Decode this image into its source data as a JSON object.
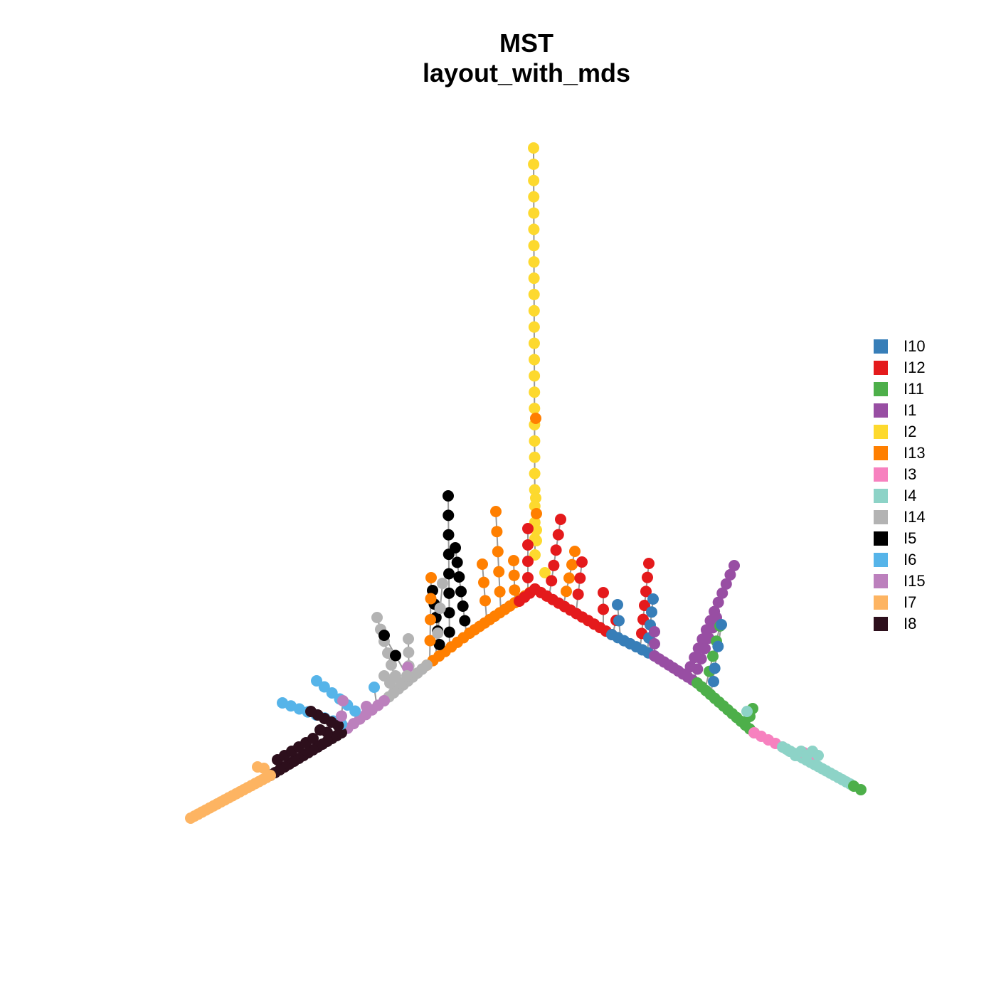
{
  "title": {
    "line1": "MST",
    "line2": "layout_with_mds"
  },
  "legend": {
    "items": [
      {
        "label": "I10",
        "color": "#377EB8"
      },
      {
        "label": "I12",
        "color": "#E41A1C"
      },
      {
        "label": "I11",
        "color": "#4DAF4A"
      },
      {
        "label": "I1",
        "color": "#984EA3"
      },
      {
        "label": "I2",
        "color": "#FDD92E"
      },
      {
        "label": "I13",
        "color": "#FF7F00"
      },
      {
        "label": "I3",
        "color": "#F781BF"
      },
      {
        "label": "I4",
        "color": "#8DD3C7"
      },
      {
        "label": "I14",
        "color": "#B3B3B3"
      },
      {
        "label": "I5",
        "color": "#000000"
      },
      {
        "label": "I6",
        "color": "#56B4E9"
      },
      {
        "label": "I15",
        "color": "#BC80BD"
      },
      {
        "label": "I7",
        "color": "#FDB462"
      },
      {
        "label": "I8",
        "color": "#2D0F1C"
      }
    ]
  },
  "colors": {
    "edge": "#999999"
  }
}
